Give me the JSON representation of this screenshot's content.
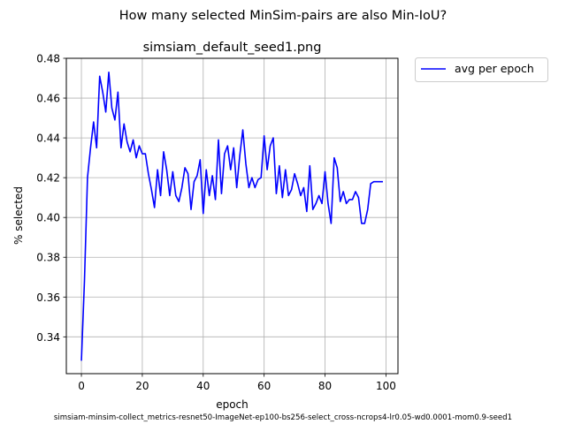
{
  "figure": {
    "suptitle": "How many selected MinSim-pairs are also Min-IoU?",
    "footer": "simsiam-minsim-collect_metrics-resnet50-ImageNet-ep100-bs256-select_cross-ncrops4-lr0.05-wd0.0001-mom0.9-seed1"
  },
  "chart_data": {
    "type": "line",
    "title": "simsiam_default_seed1.png",
    "xlabel": "epoch",
    "ylabel": "% selected",
    "xlim": [
      -4.95,
      103.95
    ],
    "ylim": [
      0.3215,
      0.48
    ],
    "xticks": [
      0,
      20,
      40,
      60,
      80,
      100
    ],
    "xtick_labels": [
      "0",
      "20",
      "40",
      "60",
      "80",
      "100"
    ],
    "yticks": [
      0.34,
      0.36,
      0.38,
      0.4,
      0.42,
      0.44,
      0.46,
      0.48
    ],
    "ytick_labels": [
      "0.34",
      "0.36",
      "0.38",
      "0.40",
      "0.42",
      "0.44",
      "0.46",
      "0.48"
    ],
    "grid": true,
    "legend": {
      "placement": "outside upper right"
    },
    "series": [
      {
        "name": "avg per epoch",
        "color": "#0000ff",
        "x": [
          0,
          1,
          2,
          3,
          4,
          5,
          6,
          7,
          8,
          9,
          10,
          11,
          12,
          13,
          14,
          15,
          16,
          17,
          18,
          19,
          20,
          21,
          22,
          23,
          24,
          25,
          26,
          27,
          28,
          29,
          30,
          31,
          32,
          33,
          34,
          35,
          36,
          37,
          38,
          39,
          40,
          41,
          42,
          43,
          44,
          45,
          46,
          47,
          48,
          49,
          50,
          51,
          52,
          53,
          54,
          55,
          56,
          57,
          58,
          59,
          60,
          61,
          62,
          63,
          64,
          65,
          66,
          67,
          68,
          69,
          70,
          71,
          72,
          73,
          74,
          75,
          76,
          77,
          78,
          79,
          80,
          81,
          82,
          83,
          84,
          85,
          86,
          87,
          88,
          89,
          90,
          91,
          92,
          93,
          94,
          95,
          96,
          97,
          98,
          99
        ],
        "y": [
          0.328,
          0.368,
          0.42,
          0.435,
          0.448,
          0.435,
          0.471,
          0.463,
          0.453,
          0.473,
          0.455,
          0.449,
          0.463,
          0.435,
          0.447,
          0.438,
          0.433,
          0.439,
          0.43,
          0.436,
          0.432,
          0.432,
          0.422,
          0.414,
          0.405,
          0.424,
          0.411,
          0.433,
          0.424,
          0.411,
          0.423,
          0.411,
          0.408,
          0.415,
          0.425,
          0.422,
          0.404,
          0.418,
          0.421,
          0.429,
          0.402,
          0.424,
          0.411,
          0.421,
          0.409,
          0.439,
          0.412,
          0.432,
          0.436,
          0.424,
          0.435,
          0.415,
          0.431,
          0.444,
          0.427,
          0.415,
          0.42,
          0.415,
          0.419,
          0.42,
          0.441,
          0.424,
          0.436,
          0.44,
          0.412,
          0.426,
          0.41,
          0.424,
          0.411,
          0.414,
          0.422,
          0.417,
          0.411,
          0.415,
          0.403,
          0.426,
          0.404,
          0.407,
          0.411,
          0.407,
          0.423,
          0.407,
          0.397,
          0.43,
          0.425,
          0.408,
          0.413,
          0.407,
          0.409,
          0.409,
          0.413,
          0.41,
          0.397,
          0.397,
          0.404,
          0.417,
          0.418,
          0.418,
          0.418,
          0.418
        ]
      }
    ]
  }
}
